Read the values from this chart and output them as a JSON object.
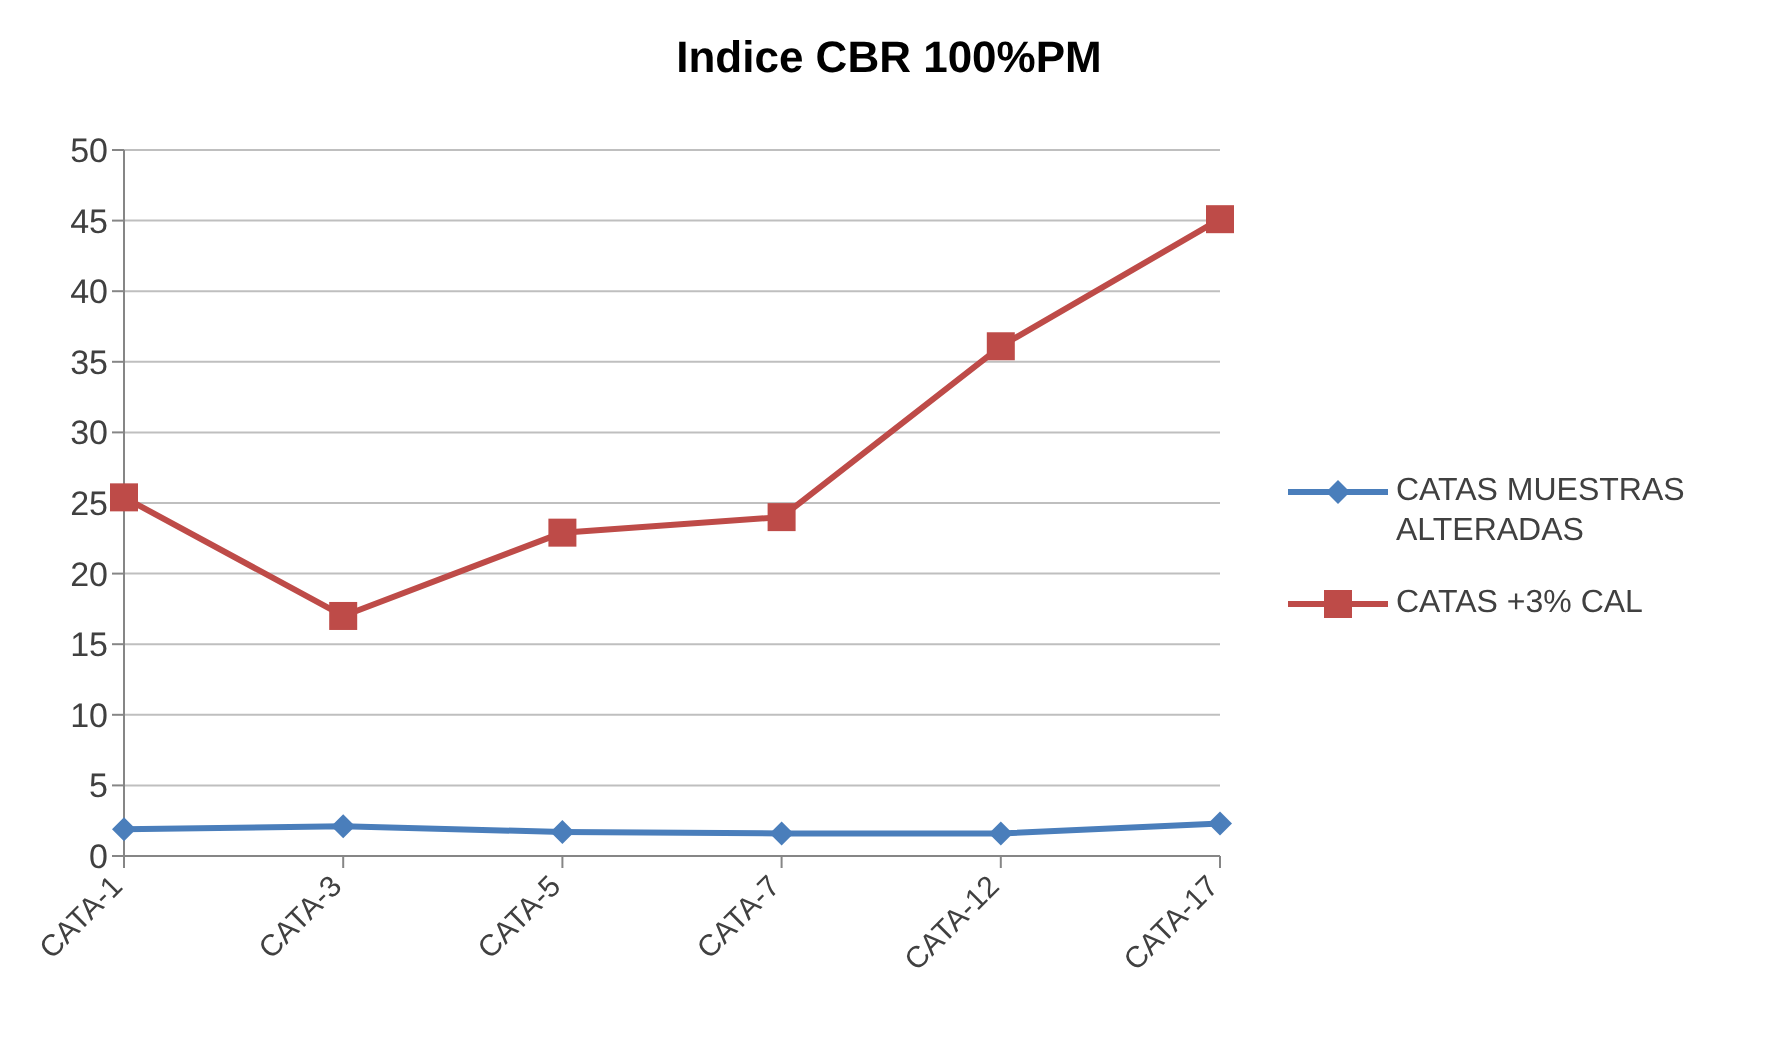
{
  "chart_data": {
    "type": "line",
    "title": "Indice CBR 100%PM",
    "categories": [
      "CATA-1",
      "CATA-3",
      "CATA-5",
      "CATA-7",
      "CATA-12",
      "CATA-17"
    ],
    "series": [
      {
        "name": "CATAS MUESTRAS ALTERADAS",
        "color": "#4a7ebb",
        "marker": "diamond",
        "values": [
          1.9,
          2.1,
          1.7,
          1.6,
          1.6,
          2.3
        ]
      },
      {
        "name": "CATAS +3% CAL",
        "color": "#be4b48",
        "marker": "square",
        "values": [
          25.4,
          17,
          22.9,
          24,
          36.1,
          45.1
        ]
      }
    ],
    "ylim": [
      0,
      50
    ],
    "yticks": [
      0,
      5,
      10,
      15,
      20,
      25,
      30,
      35,
      40,
      45,
      50
    ],
    "grid": "y",
    "legend": "right"
  }
}
